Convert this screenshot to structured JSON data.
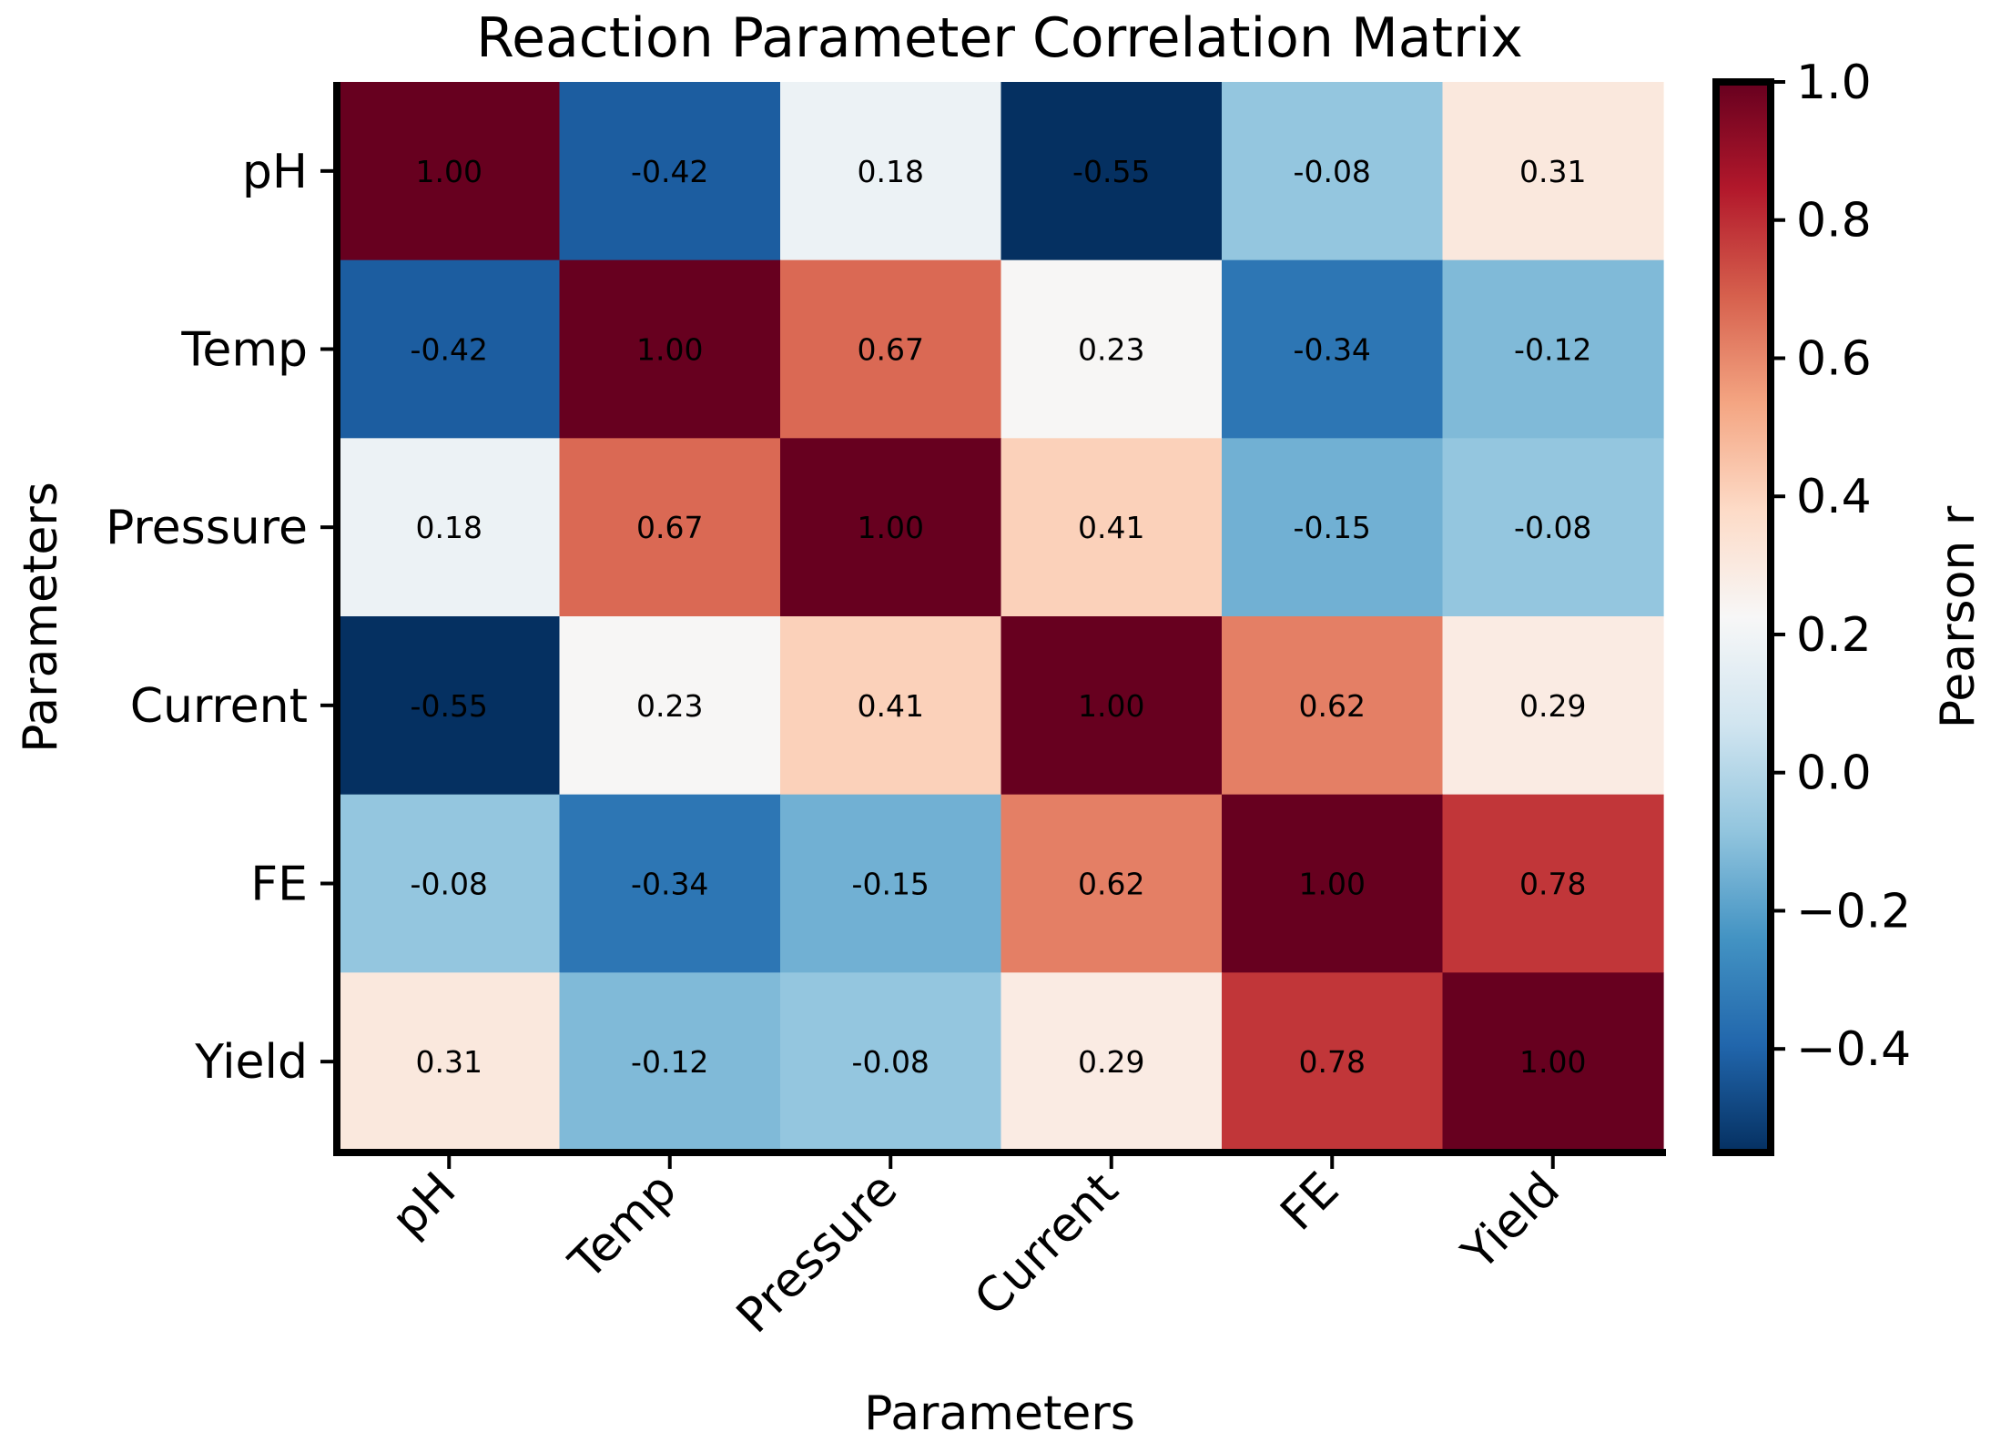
{
  "chart_data": {
    "type": "heatmap",
    "title": "Reaction Parameter Correlation Matrix",
    "xlabel": "Parameters",
    "ylabel": "Parameters",
    "x_categories": [
      "pH",
      "Temp",
      "Pressure",
      "Current",
      "FE",
      "Yield"
    ],
    "y_categories": [
      "pH",
      "Temp",
      "Pressure",
      "Current",
      "FE",
      "Yield"
    ],
    "values": [
      [
        1.0,
        -0.42,
        0.18,
        -0.55,
        -0.08,
        0.31
      ],
      [
        -0.42,
        1.0,
        0.67,
        0.23,
        -0.34,
        -0.12
      ],
      [
        0.18,
        0.67,
        1.0,
        0.41,
        -0.15,
        -0.08
      ],
      [
        -0.55,
        0.23,
        0.41,
        1.0,
        0.62,
        0.29
      ],
      [
        -0.08,
        -0.34,
        -0.15,
        0.62,
        1.0,
        0.78
      ],
      [
        0.31,
        -0.12,
        -0.08,
        0.29,
        0.78,
        1.0
      ]
    ],
    "value_format": "0.00",
    "colorscale": "RdBu_r",
    "colorbar": {
      "label": "Pearson r",
      "range": [
        -0.55,
        1.0
      ],
      "ticks": [
        -0.4,
        -0.2,
        0.0,
        0.2,
        0.4,
        0.6,
        0.8,
        1.0
      ],
      "tick_labels": [
        "−0.4",
        "−0.2",
        "0.0",
        "0.2",
        "0.4",
        "0.6",
        "0.8",
        "1.0"
      ]
    },
    "grid": false,
    "legend": "colorbar-right"
  }
}
